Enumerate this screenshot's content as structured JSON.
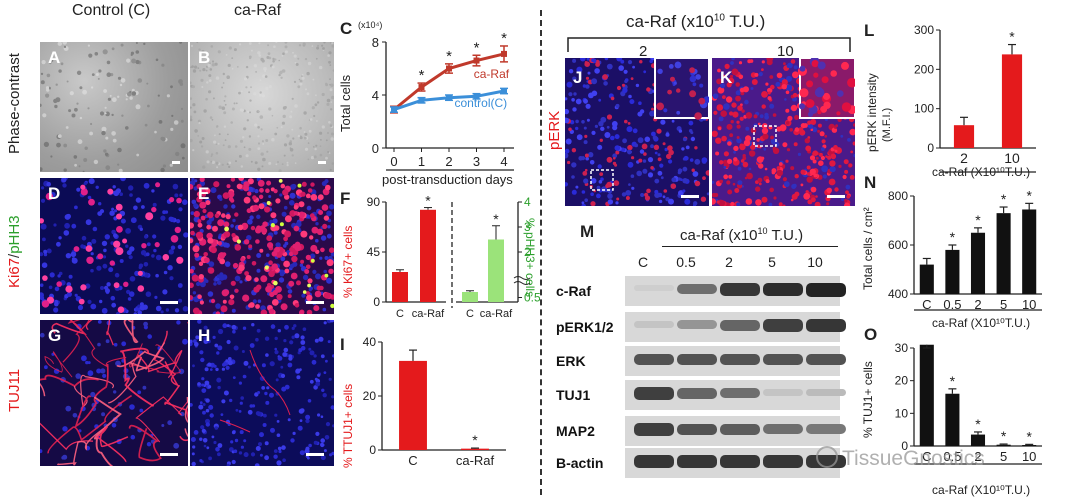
{
  "headers": {
    "control": "Control (C)",
    "caraf": "ca-Raf",
    "caraf_dose": "ca-Raf  (x10",
    "caraf_dose_exp": "10",
    "caraf_dose_unit": " T.U.)",
    "dose2": "2",
    "dose10": "10"
  },
  "rows": {
    "phase": "Phase-contrast",
    "ki67": "Ki67",
    "slash": "/",
    "phh3": "pHH3",
    "tuj11": "TUJ11",
    "perk": "pERK"
  },
  "panel_letters": {
    "A": "A",
    "B": "B",
    "C": "C",
    "D": "D",
    "E": "E",
    "F": "F",
    "G": "G",
    "H": "H",
    "I": "I",
    "J": "J",
    "K": "K",
    "L": "L",
    "M": "M",
    "N": "N",
    "O": "O"
  },
  "watermark": "TissueGnostics",
  "colors": {
    "red": "#e41a1c",
    "blue": "#3b8fd9",
    "green": "#9be37a",
    "dapi": "#1a1ab8"
  },
  "chart_data": [
    {
      "panel": "C",
      "type": "line",
      "ylabel": "Total cells",
      "yunit": "(x10⁴)",
      "xlabel": "post-transduction days",
      "x": [
        0,
        1,
        2,
        3,
        4
      ],
      "ylim": [
        0,
        8
      ],
      "yticks": [
        0,
        4,
        8
      ],
      "series": [
        {
          "name": "ca-Raf",
          "values": [
            2.9,
            4.6,
            6.0,
            6.6,
            7.1
          ],
          "err": [
            0.25,
            0.3,
            0.35,
            0.4,
            0.6
          ],
          "color": "#c0392b"
        },
        {
          "name": "control(C)",
          "values": [
            2.9,
            3.6,
            3.8,
            3.9,
            4.3
          ],
          "err": [
            0.2,
            0.2,
            0.2,
            0.2,
            0.2
          ],
          "color": "#3b8fd9"
        }
      ],
      "sig": [
        1,
        2,
        3,
        4
      ]
    },
    {
      "panel": "F",
      "type": "bar",
      "ylabel_left": "% Ki67+ cells",
      "ylabel_right": "% pHH3+ cells",
      "categories": [
        "C",
        "ca-Raf",
        "C",
        "ca-Raf"
      ],
      "left": {
        "values": [
          27,
          83
        ],
        "err": [
          2,
          2
        ],
        "ylim": [
          0,
          90
        ],
        "yticks": [
          0,
          45,
          90
        ]
      },
      "right": {
        "values": [
          0.4,
          2.5
        ],
        "err": [
          0.05,
          0.55
        ],
        "ylim": [
          0,
          4
        ],
        "yticks": [
          "0.5",
          "2",
          "3",
          "4"
        ]
      }
    },
    {
      "panel": "I",
      "type": "bar",
      "ylabel": "% TTUJ1+ cells",
      "categories": [
        "C",
        "ca-Raf"
      ],
      "values": [
        33,
        0.5
      ],
      "err": [
        4,
        0.2
      ],
      "ylim": [
        0,
        40
      ],
      "yticks": [
        0,
        20,
        40
      ]
    },
    {
      "panel": "L",
      "type": "bar",
      "ylabel": "pERK intensity",
      "yunit": "(M.F.I.)",
      "xlabel": "ca-Raf (X10¹⁰T.U.)",
      "categories": [
        "2",
        "10"
      ],
      "values": [
        58,
        238
      ],
      "err": [
        20,
        25
      ],
      "ylim": [
        0,
        300
      ],
      "yticks": [
        0,
        100,
        200,
        300
      ]
    },
    {
      "panel": "N",
      "type": "bar",
      "ylabel": "Total cells / cm²",
      "xlabel": "ca-Raf (X10¹⁰T.U.)",
      "categories": [
        "C",
        "0.5",
        "2",
        "5",
        "10"
      ],
      "values": [
        520,
        580,
        650,
        730,
        745
      ],
      "err": [
        25,
        20,
        20,
        25,
        25
      ],
      "ylim": [
        400,
        800
      ],
      "yticks": [
        400,
        600,
        800
      ]
    },
    {
      "panel": "O",
      "type": "bar",
      "ylabel": "% TUJ1+ cells",
      "xlabel": "ca-Raf (X10¹⁰T.U.)",
      "categories": [
        "C",
        "0.5",
        "2",
        "5",
        "10"
      ],
      "values": [
        31,
        16,
        3.5,
        0.4,
        0.3
      ],
      "err": [
        2.5,
        1.5,
        0.8,
        0.2,
        0.2
      ],
      "ylim": [
        0,
        30
      ],
      "yticks": [
        0,
        10,
        20,
        30
      ]
    }
  ],
  "western": {
    "header": "ca-Raf (x10",
    "header_exp": "10",
    "header_unit": " T.U.)",
    "lanes": [
      "C",
      "0.5",
      "2",
      "5",
      "10"
    ],
    "rows": [
      {
        "label": "c-Raf",
        "levels": [
          0.05,
          0.55,
          0.85,
          0.9,
          0.95
        ]
      },
      {
        "label": "pERK1/2",
        "levels": [
          0.1,
          0.35,
          0.6,
          0.8,
          0.85
        ]
      },
      {
        "label": "ERK",
        "levels": [
          0.7,
          0.7,
          0.7,
          0.7,
          0.7
        ]
      },
      {
        "label": "TUJ1",
        "levels": [
          0.8,
          0.6,
          0.55,
          0.1,
          0.15
        ]
      },
      {
        "label": "MAP2",
        "levels": [
          0.8,
          0.7,
          0.65,
          0.55,
          0.5
        ]
      },
      {
        "label": "B-actin",
        "levels": [
          0.85,
          0.85,
          0.85,
          0.85,
          0.85
        ]
      }
    ]
  }
}
